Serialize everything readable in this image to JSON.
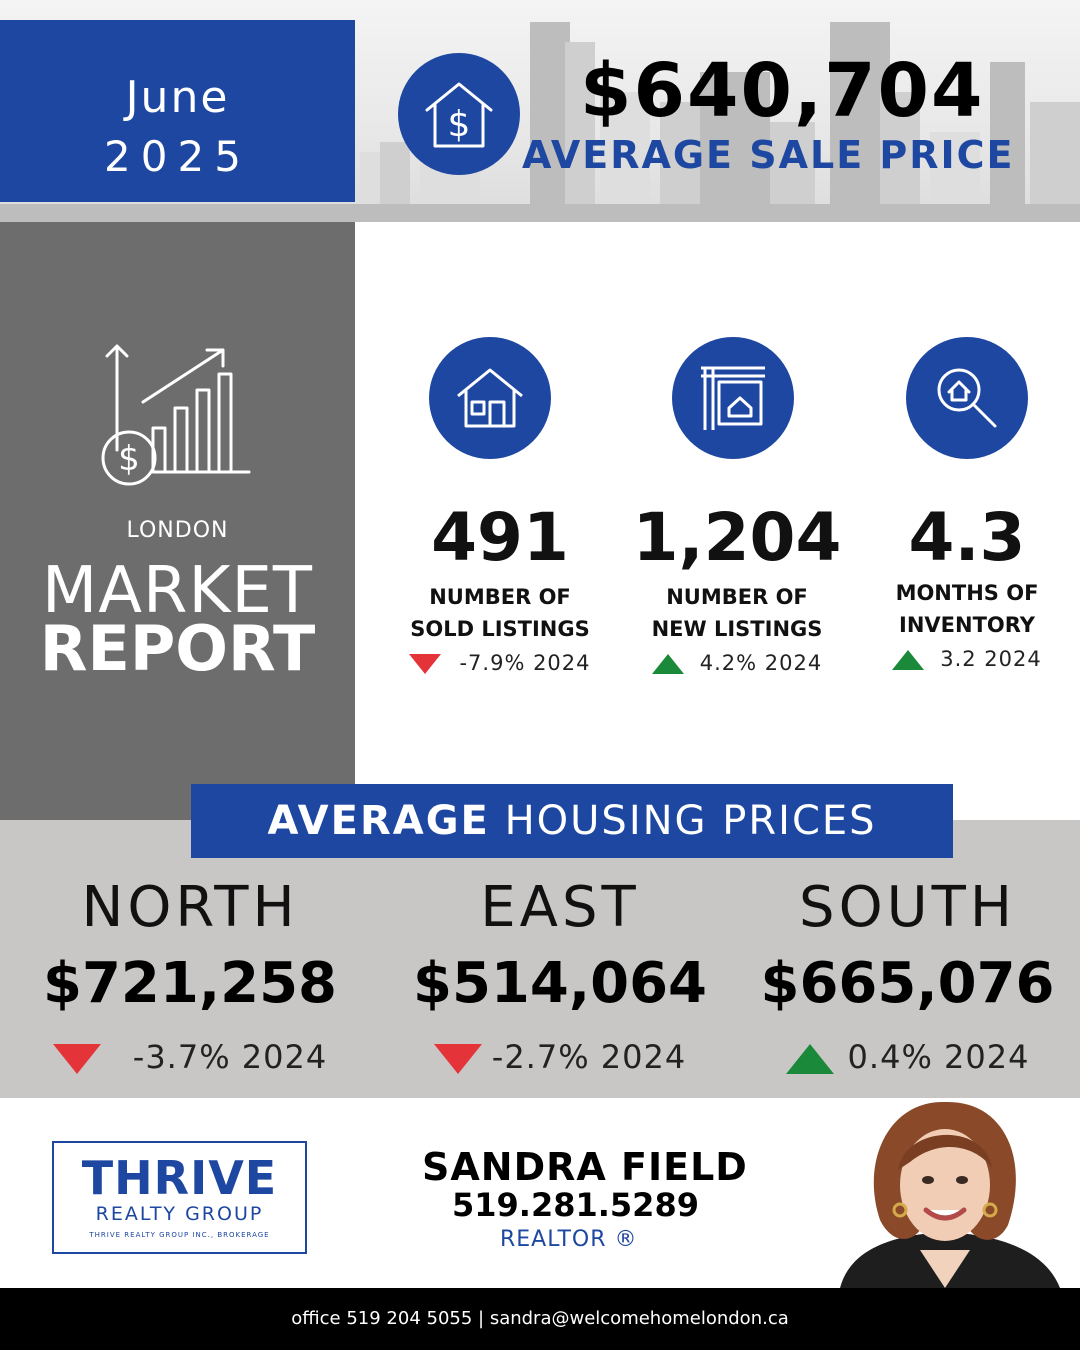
{
  "header": {
    "month": "June",
    "year": "2025",
    "avg_sale_price": "$640,704",
    "avg_sale_label": "AVERAGE SALE PRICE",
    "icon": "house-dollar-icon"
  },
  "side_panel": {
    "icon": "growth-chart-dollar-icon",
    "city": "LONDON",
    "title_line1": "MARKET",
    "title_line2": "REPORT"
  },
  "stats": [
    {
      "icon": "house-icon",
      "value": "491",
      "label_line1": "NUMBER OF",
      "label_line2": "SOLD LISTINGS",
      "trend": "down",
      "change": "-7.9% 2024"
    },
    {
      "icon": "for-sale-sign-icon",
      "value": "1,204",
      "label_line1": "NUMBER OF",
      "label_line2": "NEW LISTINGS",
      "trend": "up",
      "change": "4.2% 2024"
    },
    {
      "icon": "house-search-icon",
      "value": "4.3",
      "label_line1": "MONTHS OF",
      "label_line2": "INVENTORY",
      "trend": "up",
      "change": "3.2 2024"
    }
  ],
  "housing": {
    "title_bold": "AVERAGE",
    "title_rest": " HOUSING PRICES",
    "regions": [
      {
        "name": "NORTH",
        "price": "$721,258",
        "trend": "down",
        "change": "-3.7% 2024"
      },
      {
        "name": "EAST",
        "price": "$514,064",
        "trend": "down",
        "change": "-2.7% 2024"
      },
      {
        "name": "SOUTH",
        "price": "$665,076",
        "trend": "up",
        "change": "0.4% 2024"
      }
    ]
  },
  "brokerage": {
    "brand": "THRIVE",
    "sub": "REALTY GROUP",
    "legal": "THRIVE REALTY GROUP INC., BROKERAGE"
  },
  "agent": {
    "name": "SANDRA FIELD",
    "phone": "519.281.5289",
    "title": "REALTOR ®"
  },
  "footer": {
    "contact": "office 519 204 5055 | sandra@welcomehomelondon.ca"
  },
  "colors": {
    "brand_blue": "#1d47a1",
    "panel_gray": "#6d6d6d",
    "band_gray": "#c8c7c6",
    "down_red": "#e5333a",
    "up_green": "#1a8a3a"
  }
}
